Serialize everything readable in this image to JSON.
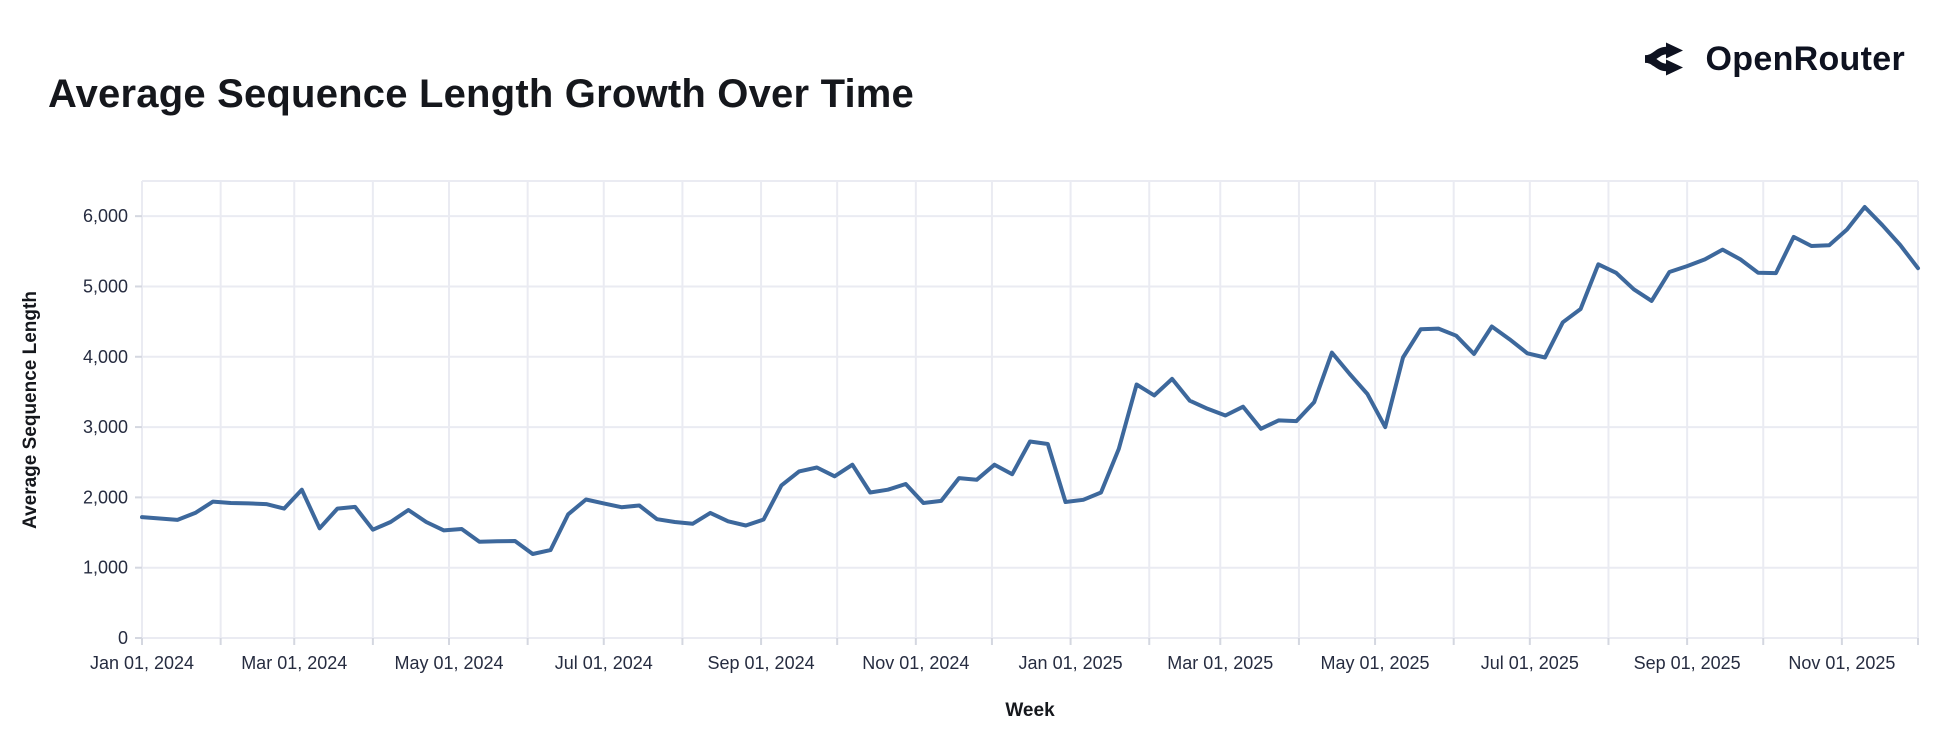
{
  "header": {
    "title": "Average Sequence Length Growth Over Time",
    "brand": "OpenRouter"
  },
  "chart_data": {
    "type": "line",
    "title": "Average Sequence Length Growth Over Time",
    "xlabel": "Week",
    "ylabel": "Average Sequence Length",
    "x_start_date": "2024-01-01",
    "x_end_date": "2025-12-01",
    "point_interval_days": 7,
    "ylim": [
      0,
      6500
    ],
    "grid": true,
    "legend": "none",
    "yticks": [
      0,
      1000,
      2000,
      3000,
      4000,
      5000,
      6000
    ],
    "ytick_labels": [
      "0",
      "1,000",
      "2,000",
      "3,000",
      "4,000",
      "5,000",
      "6,000"
    ],
    "xtick_labels": [
      "Jan 01, 2024",
      "Mar 01, 2024",
      "May 01, 2024",
      "Jul 01, 2024",
      "Sep 01, 2024",
      "Nov 01, 2024",
      "Jan 01, 2025",
      "Mar 01, 2025",
      "May 01, 2025",
      "Jul 01, 2025",
      "Sep 01, 2025",
      "Nov 01, 2025"
    ],
    "colors": {
      "line": "#3d689c",
      "grid": "#eaebf2",
      "tick": "#d4d7e0",
      "label_text": "#262c40",
      "title_text": "#15171c"
    },
    "series": [
      {
        "name": "Average Sequence Length",
        "values": [
          1720,
          1700,
          1680,
          1780,
          1940,
          1920,
          1915,
          1905,
          1840,
          2110,
          1560,
          1840,
          1865,
          1540,
          1650,
          1820,
          1650,
          1530,
          1550,
          1370,
          1375,
          1380,
          1195,
          1250,
          1760,
          1970,
          1915,
          1860,
          1885,
          1690,
          1650,
          1625,
          1780,
          1660,
          1600,
          1685,
          2170,
          2370,
          2425,
          2300,
          2465,
          2070,
          2110,
          2190,
          1920,
          1950,
          2275,
          2250,
          2465,
          2330,
          2795,
          2760,
          1935,
          1965,
          2070,
          2690,
          3605,
          3450,
          3685,
          3375,
          3260,
          3165,
          3290,
          2975,
          3095,
          3085,
          3355,
          4060,
          3755,
          3470,
          3000,
          3990,
          4390,
          4400,
          4300,
          4040,
          4430,
          4250,
          4050,
          3990,
          4490,
          4680,
          5315,
          5195,
          4960,
          4795,
          5205,
          5290,
          5385,
          5525,
          5385,
          5195,
          5190,
          5705,
          5575,
          5585,
          5810,
          6130,
          5870,
          5590,
          5260
        ]
      }
    ]
  }
}
